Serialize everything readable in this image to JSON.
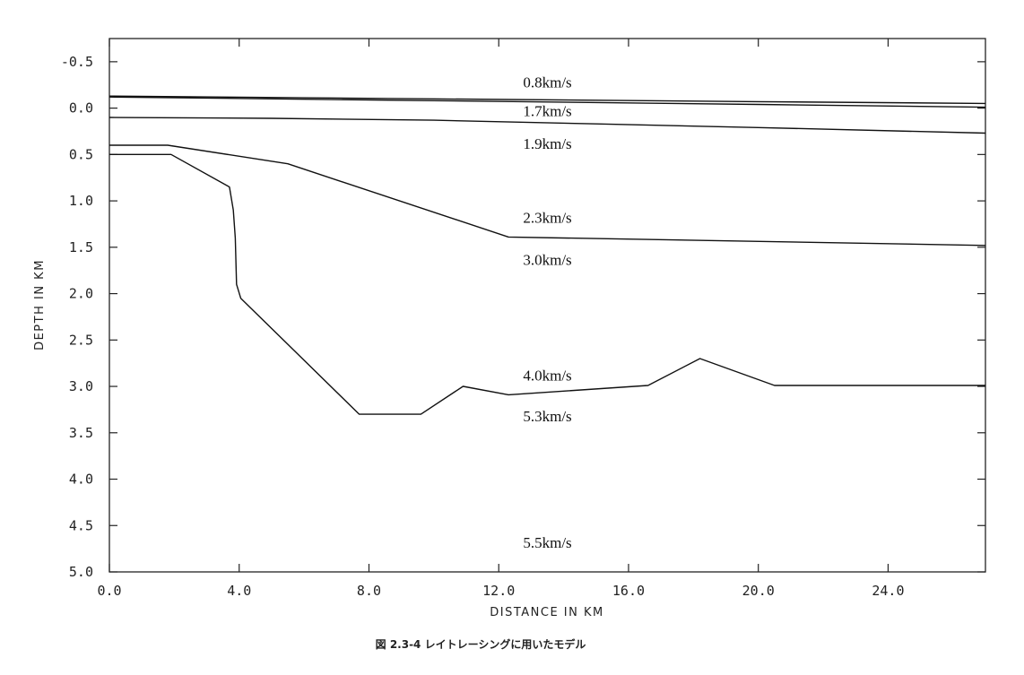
{
  "chart_data": {
    "type": "line",
    "title": "",
    "xlabel": "DISTANCE IN KM",
    "ylabel": "DEPTH IN KM",
    "xlim": [
      0.0,
      27.0
    ],
    "ylim": [
      -0.75,
      5.0
    ],
    "y_inverted": true,
    "grid": false,
    "x_ticks": [
      "0.0",
      "4.0",
      "8.0",
      "12.0",
      "16.0",
      "20.0",
      "24.0"
    ],
    "x_tick_values": [
      0,
      4,
      8,
      12,
      16,
      20,
      24
    ],
    "y_ticks": [
      "-0.5",
      "0.0",
      "0.5",
      "1.0",
      "1.5",
      "2.0",
      "2.5",
      "3.0",
      "3.5",
      "4.0",
      "4.5",
      "5.0"
    ],
    "y_tick_values": [
      -0.5,
      0.0,
      0.5,
      1.0,
      1.5,
      2.0,
      2.5,
      3.0,
      3.5,
      4.0,
      4.5,
      5.0
    ],
    "interfaces": [
      {
        "x": [
          0,
          10,
          20,
          27
        ],
        "y": [
          -0.13,
          -0.1,
          -0.07,
          -0.05
        ]
      },
      {
        "x": [
          0,
          10,
          20,
          27
        ],
        "y": [
          -0.12,
          -0.08,
          -0.04,
          -0.01
        ]
      },
      {
        "x": [
          0,
          5,
          10,
          15,
          20,
          27
        ],
        "y": [
          0.1,
          0.11,
          0.13,
          0.17,
          0.21,
          0.27
        ]
      },
      {
        "x": [
          0,
          1.8,
          5.5,
          12.3,
          27
        ],
        "y": [
          0.4,
          0.4,
          0.6,
          1.39,
          1.48
        ]
      },
      {
        "x": [
          0,
          1.9,
          3.7,
          3.82,
          3.88,
          3.92,
          4.05,
          7.7,
          9.6,
          10.9,
          12.3,
          16.6,
          18.2,
          20.5,
          27
        ],
        "y": [
          0.5,
          0.5,
          0.85,
          1.1,
          1.4,
          1.9,
          2.05,
          3.3,
          3.3,
          3.0,
          3.09,
          2.99,
          2.7,
          2.99,
          2.99
        ]
      }
    ],
    "velocity_labels": [
      {
        "text": "0.8km/s",
        "x": 13.5,
        "y": -0.28
      },
      {
        "text": "1.7km/s",
        "x": 13.5,
        "y": 0.03
      },
      {
        "text": "1.9km/s",
        "x": 13.5,
        "y": 0.38
      },
      {
        "text": "2.3km/s",
        "x": 13.5,
        "y": 1.18
      },
      {
        "text": "3.0km/s",
        "x": 13.5,
        "y": 1.63
      },
      {
        "text": "4.0km/s",
        "x": 13.5,
        "y": 2.88
      },
      {
        "text": "5.3km/s",
        "x": 13.5,
        "y": 3.32
      },
      {
        "text": "5.5km/s",
        "x": 13.5,
        "y": 4.68
      }
    ]
  },
  "caption": "図 2.3-4 レイトレーシングに用いたモデル"
}
